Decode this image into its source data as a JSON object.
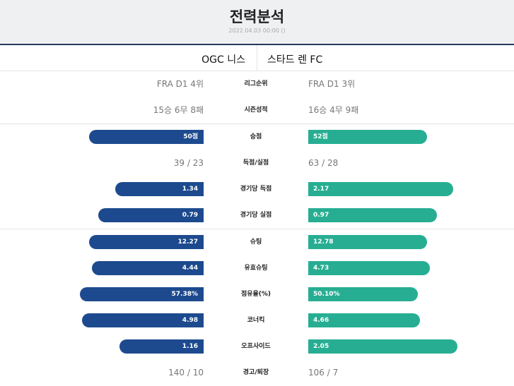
{
  "header": {
    "title": "전력분석",
    "subtitle": "2022.04.03 00:00 ()"
  },
  "teams": {
    "home": "OGC 니스",
    "away": "스타드 렌 FC"
  },
  "colors": {
    "home_bar": "#1d4a8e",
    "away_bar": "#27ae92",
    "header_line": "#223a5e"
  },
  "rows": [
    {
      "label": "리그순위",
      "type": "text",
      "home": "FRA D1 4위",
      "away": "FRA D1 3위"
    },
    {
      "label": "시즌성적",
      "type": "text",
      "home": "15승 6무 8패",
      "away": "16승 4무 9패"
    },
    {
      "label": "승점",
      "type": "bar",
      "home": "50점",
      "away": "52점",
      "home_share": 0.49,
      "away_share": 0.51
    },
    {
      "label": "득점/실점",
      "type": "text",
      "home": "39 / 23",
      "away": "63 / 28"
    },
    {
      "label": "경기당 득점",
      "type": "bar",
      "home": "1.34",
      "away": "2.17",
      "home_share": 0.38,
      "away_share": 0.62
    },
    {
      "label": "경기당 실점",
      "type": "bar",
      "home": "0.79",
      "away": "0.97",
      "home_share": 0.45,
      "away_share": 0.55
    },
    {
      "label": "슈팅",
      "type": "bar",
      "home": "12.27",
      "away": "12.78",
      "home_share": 0.49,
      "away_share": 0.51
    },
    {
      "label": "유효슈팅",
      "type": "bar",
      "home": "4.44",
      "away": "4.73",
      "home_share": 0.48,
      "away_share": 0.52
    },
    {
      "label": "점유율(%)",
      "type": "bar",
      "home": "57.38%",
      "away": "50.10%",
      "home_share": 0.53,
      "away_share": 0.47
    },
    {
      "label": "코너킥",
      "type": "bar",
      "home": "4.98",
      "away": "4.66",
      "home_share": 0.52,
      "away_share": 0.48
    },
    {
      "label": "오프사이드",
      "type": "bar",
      "home": "1.16",
      "away": "2.05",
      "home_share": 0.36,
      "away_share": 0.64
    },
    {
      "label": "경고/퇴장",
      "type": "text",
      "home": "140 / 10",
      "away": "106 / 7"
    }
  ]
}
